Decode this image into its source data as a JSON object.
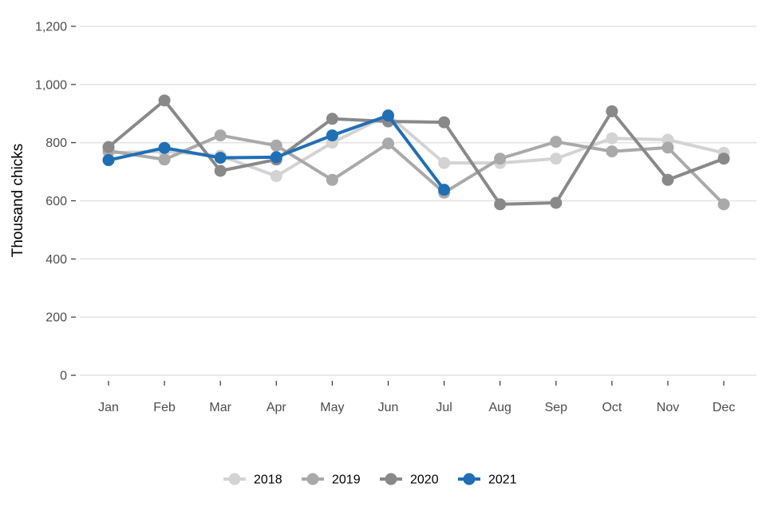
{
  "chart_data": {
    "type": "line",
    "title": "",
    "xlabel": "",
    "ylabel": "Thousand chicks",
    "ylim": [
      0,
      1200
    ],
    "yticks": [
      0,
      200,
      400,
      600,
      800,
      1000,
      1200
    ],
    "ytick_labels": [
      "0",
      "200",
      "400",
      "600",
      "800",
      "1,000",
      "1,200"
    ],
    "categories": [
      "Jan",
      "Feb",
      "Mar",
      "Apr",
      "May",
      "Jun",
      "Jul",
      "Aug",
      "Sep",
      "Oct",
      "Nov",
      "Dec"
    ],
    "grid": "horizontal",
    "legend_position": "bottom",
    "series": [
      {
        "name": "2018",
        "color": "#d3d3d3",
        "values": [
          765,
          770,
          755,
          685,
          800,
          895,
          730,
          730,
          745,
          815,
          810,
          765
        ]
      },
      {
        "name": "2019",
        "color": "#a9a9a9",
        "values": [
          772,
          742,
          825,
          790,
          672,
          797,
          628,
          745,
          803,
          770,
          783,
          588
        ]
      },
      {
        "name": "2020",
        "color": "#898989",
        "values": [
          785,
          945,
          703,
          742,
          882,
          873,
          870,
          588,
          593,
          908,
          672,
          745
        ]
      },
      {
        "name": "2021",
        "color": "#1f6fb5",
        "values": [
          740,
          782,
          748,
          750,
          825,
          893,
          638,
          null,
          null,
          null,
          null,
          null
        ]
      }
    ]
  }
}
